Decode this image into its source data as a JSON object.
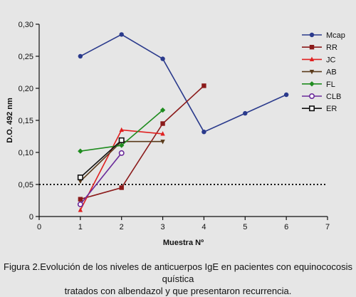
{
  "chart_data": {
    "type": "line",
    "title": "",
    "xlabel": "Muestra Nº",
    "ylabel": "D.O. 492 nm",
    "xlim": [
      0,
      7
    ],
    "ylim": [
      0,
      0.3
    ],
    "xticks": [
      "0",
      "1",
      "2",
      "3",
      "4",
      "5",
      "6",
      "7"
    ],
    "yticks": [
      "0",
      "0,05",
      "0,10",
      "0,15",
      "0,20",
      "0,25",
      "0,30"
    ],
    "grid": false,
    "legend_position": "top-right",
    "threshold_line": {
      "y": 0.05,
      "style": "dotted"
    },
    "series": [
      {
        "name": "Mcap",
        "color": "#2a3a8c",
        "marker": "circle",
        "x": [
          1,
          2,
          3,
          4,
          5,
          6
        ],
        "y": [
          0.25,
          0.284,
          0.246,
          0.132,
          0.161,
          0.19
        ]
      },
      {
        "name": "RR",
        "color": "#8b1a1a",
        "marker": "square",
        "x": [
          1,
          2,
          3,
          4
        ],
        "y": [
          0.027,
          0.045,
          0.145,
          0.204
        ]
      },
      {
        "name": "JC",
        "color": "#e02020",
        "marker": "triangle-up",
        "x": [
          1,
          2,
          3
        ],
        "y": [
          0.01,
          0.135,
          0.129
        ]
      },
      {
        "name": "AB",
        "color": "#5a3a1a",
        "marker": "triangle-down",
        "x": [
          1,
          2,
          3
        ],
        "y": [
          0.055,
          0.117,
          0.117
        ]
      },
      {
        "name": "FL",
        "color": "#1f8c1f",
        "marker": "diamond",
        "x": [
          1,
          2,
          3
        ],
        "y": [
          0.102,
          0.111,
          0.166
        ]
      },
      {
        "name": "CLB",
        "color": "#6a2a9a",
        "marker": "open-circle",
        "x": [
          1,
          2
        ],
        "y": [
          0.019,
          0.099
        ]
      },
      {
        "name": "ER",
        "color": "#111111",
        "marker": "open-square",
        "x": [
          1,
          2
        ],
        "y": [
          0.061,
          0.119
        ]
      }
    ]
  },
  "caption": {
    "line1": "Figura 2.Evolución de los niveles de anticuerpos IgE en pacientes con equinococosis quística",
    "line2": "tratados con albendazol y que presentaron recurrencia."
  }
}
